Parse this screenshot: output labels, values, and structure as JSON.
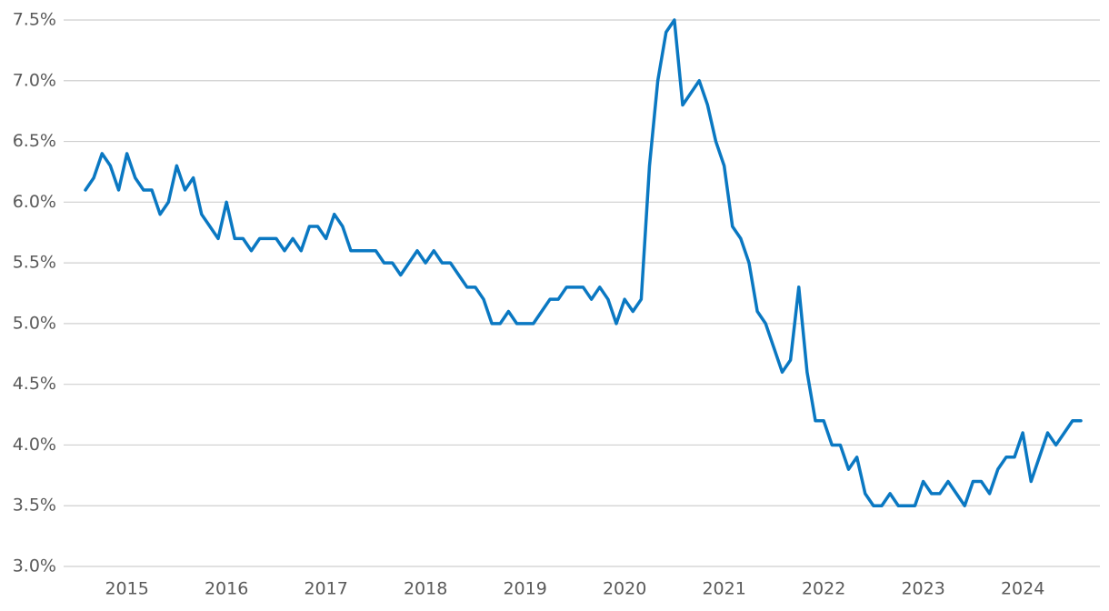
{
  "chart_data": {
    "type": "line",
    "categories": [
      null,
      null,
      null,
      null,
      null,
      "2015",
      null,
      null,
      null,
      null,
      null,
      null,
      null,
      null,
      null,
      null,
      null,
      "2016",
      null,
      null,
      null,
      null,
      null,
      null,
      null,
      null,
      null,
      null,
      null,
      "2017",
      null,
      null,
      null,
      null,
      null,
      null,
      null,
      null,
      null,
      null,
      null,
      "2018",
      null,
      null,
      null,
      null,
      null,
      null,
      null,
      null,
      null,
      null,
      null,
      "2019",
      null,
      null,
      null,
      null,
      null,
      null,
      null,
      null,
      null,
      null,
      null,
      "2020",
      null,
      null,
      null,
      null,
      null,
      null,
      null,
      null,
      null,
      null,
      null,
      "2021",
      null,
      null,
      null,
      null,
      null,
      null,
      null,
      null,
      null,
      null,
      null,
      "2022",
      null,
      null,
      null,
      null,
      null,
      null,
      null,
      null,
      null,
      null,
      null,
      "2023",
      null,
      null,
      null,
      null,
      null,
      null,
      null,
      null,
      null,
      null,
      null,
      "2024",
      null,
      null,
      null,
      null,
      null,
      null,
      null
    ],
    "series": [
      {
        "color": "#0a78c2",
        "values": [
          6.1,
          6.2,
          6.4,
          6.3,
          6.1,
          6.4,
          6.2,
          6.1,
          6.1,
          5.9,
          6.0,
          6.3,
          6.1,
          6.2,
          5.9,
          5.8,
          5.7,
          6.0,
          5.7,
          5.7,
          5.6,
          5.7,
          5.7,
          5.7,
          5.6,
          5.7,
          5.6,
          5.8,
          5.8,
          5.7,
          5.9,
          5.8,
          5.6,
          5.6,
          5.6,
          5.6,
          5.5,
          5.5,
          5.4,
          5.5,
          5.6,
          5.5,
          5.6,
          5.5,
          5.5,
          5.4,
          5.3,
          5.3,
          5.2,
          5.0,
          5.0,
          5.1,
          5.0,
          5.0,
          5.0,
          5.1,
          5.2,
          5.2,
          5.3,
          5.3,
          5.3,
          5.2,
          5.3,
          5.2,
          5.0,
          5.2,
          5.1,
          5.2,
          6.3,
          7.0,
          7.4,
          7.5,
          6.8,
          6.9,
          7.0,
          6.8,
          6.5,
          6.3,
          5.8,
          5.7,
          5.5,
          5.1,
          5.0,
          4.8,
          4.6,
          4.7,
          5.3,
          4.6,
          4.2,
          4.2,
          4.0,
          4.0,
          3.8,
          3.9,
          3.6,
          3.5,
          3.5,
          3.6,
          3.5,
          3.5,
          3.5,
          3.7,
          3.6,
          3.6,
          3.7,
          3.6,
          3.5,
          3.7,
          3.7,
          3.6,
          3.8,
          3.9,
          3.9,
          4.1,
          3.7,
          3.9,
          4.1,
          4.0,
          4.1,
          4.2,
          4.2
        ]
      }
    ],
    "ylim": [
      3.0,
      7.5
    ],
    "yticks": [
      {
        "value": 3.0,
        "label": "3.0%"
      },
      {
        "value": 3.5,
        "label": "3.5%"
      },
      {
        "value": 4.0,
        "label": "4.0%"
      },
      {
        "value": 4.5,
        "label": "4.5%"
      },
      {
        "value": 5.0,
        "label": "5.0%"
      },
      {
        "value": 5.5,
        "label": "5.5%"
      },
      {
        "value": 6.0,
        "label": "6.0%"
      },
      {
        "value": 6.5,
        "label": "6.5%"
      },
      {
        "value": 7.0,
        "label": "7.0%"
      },
      {
        "value": 7.5,
        "label": "7.5%"
      }
    ],
    "grid": true
  }
}
